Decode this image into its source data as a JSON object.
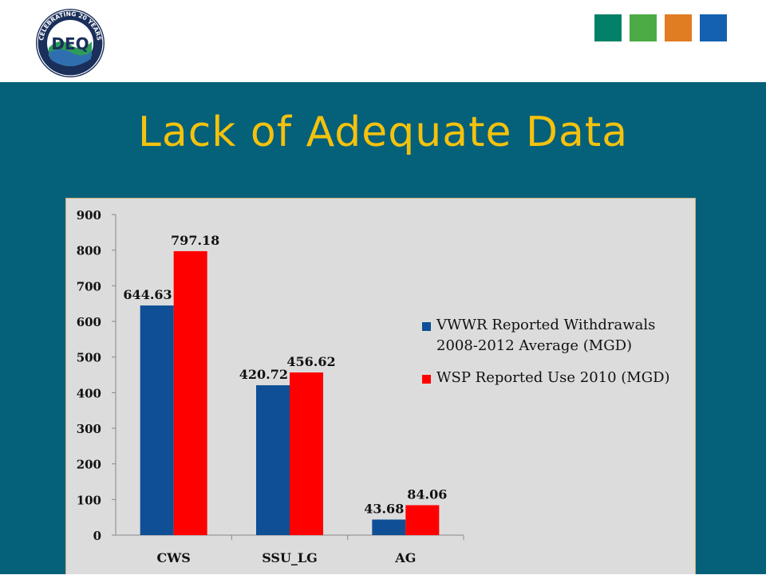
{
  "slide": {
    "title": "Lack of Adequate Data",
    "logo": {
      "icon": "deq-logo-icon",
      "ring_text": "CELEBRATING 20 YEARS",
      "center_text": "DEQ"
    },
    "accent_squares": [
      "#028168",
      "#4cab45",
      "#e07c22",
      "#1361b0"
    ],
    "colors": {
      "header_bg": "#ffffff",
      "band_bg": "#05607a",
      "title": "#f4c20d",
      "chart_bg": "#dcdcdc"
    }
  },
  "chart_data": {
    "type": "bar",
    "title": "",
    "xlabel": "",
    "ylabel": "",
    "categories": [
      "CWS",
      "SSU_LG",
      "AG"
    ],
    "series": [
      {
        "name": "VWWR Reported Withdrawals\n2008-2012 Average (MGD)",
        "values": [
          644.63,
          420.72,
          43.68
        ],
        "labels": [
          "644.63",
          "420.72",
          "43.68"
        ],
        "color": "#0e4f96"
      },
      {
        "name": "WSP Reported Use 2010 (MGD)",
        "values": [
          797.18,
          456.62,
          84.06
        ],
        "labels": [
          "797.18",
          "456.62",
          "84.06"
        ],
        "color": "#ff0000"
      }
    ],
    "ylim": [
      0,
      900
    ],
    "yticks": [
      0,
      100,
      200,
      300,
      400,
      500,
      600,
      700,
      800,
      900
    ],
    "grid": false,
    "legend_position": "right"
  }
}
